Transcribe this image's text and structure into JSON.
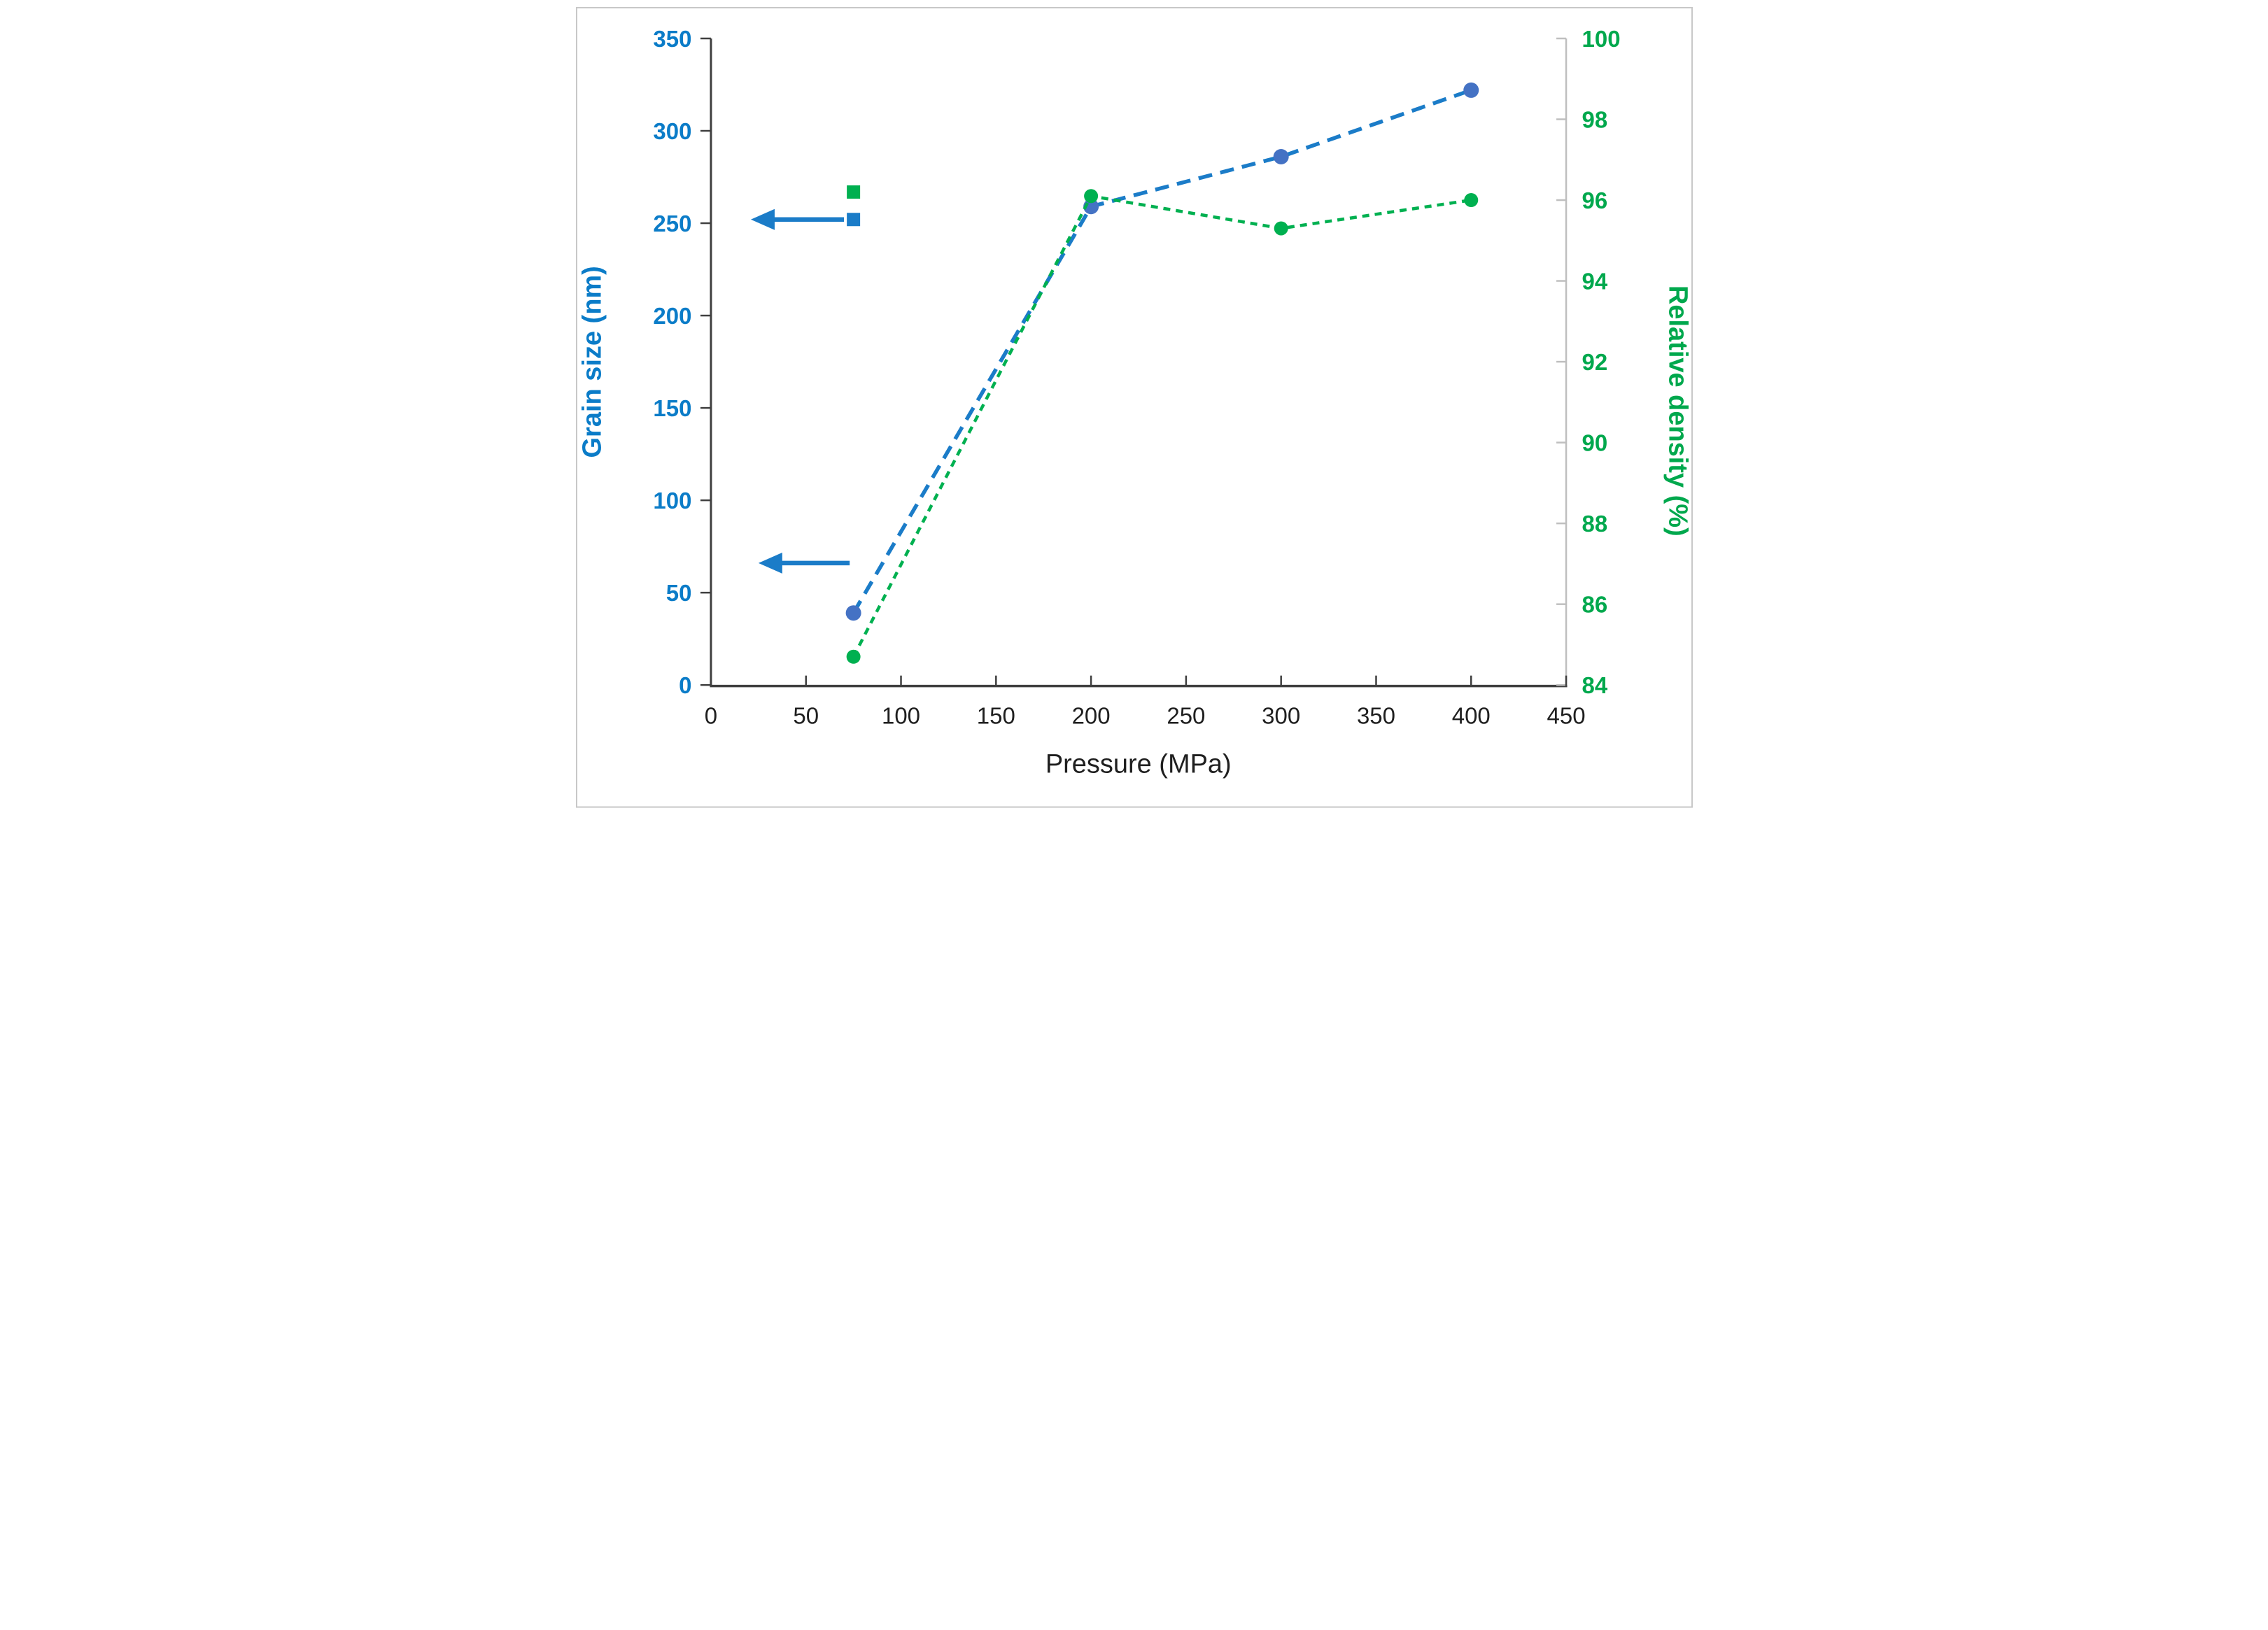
{
  "figure": {
    "background": "#ffffff",
    "border_color": "#c8c8c8",
    "axis_line_color": "#3f3f3f",
    "right_axis_line_color": "#bfbfbf",
    "x_label_color": "#1f1f1f"
  },
  "chart_data": {
    "type": "line",
    "title": "",
    "grid": false,
    "legend_position": "none",
    "x_axis": {
      "label": "Pressure (MPa)",
      "min": 0,
      "max": 450,
      "tick_step": 50,
      "ticks": [
        0,
        50,
        100,
        150,
        200,
        250,
        300,
        350,
        400,
        450
      ],
      "color": "#1f1f1f"
    },
    "left_axis": {
      "label": "Grain size (nm)",
      "min": 0,
      "max": 350,
      "tick_step": 50,
      "ticks": [
        0,
        50,
        100,
        150,
        200,
        250,
        300,
        350
      ],
      "color": "#0b7cc8"
    },
    "right_axis": {
      "label": "Relative density (%)",
      "min": 84,
      "max": 100,
      "tick_step": 2,
      "ticks": [
        84,
        86,
        88,
        90,
        92,
        94,
        96,
        98,
        100
      ],
      "color": "#00a84d"
    },
    "series": [
      {
        "name": "Grain size",
        "axis": "left",
        "marker": "circle",
        "marker_color": "#4472c4",
        "line_color": "#1b7cc8",
        "line_style": "dashed",
        "x": [
          75,
          200,
          300,
          400
        ],
        "y": [
          39,
          259,
          286,
          322
        ]
      },
      {
        "name": "Relative density",
        "axis": "right",
        "marker": "circle",
        "marker_color": "#00b050",
        "line_color": "#00b050",
        "line_style": "dotted",
        "x": [
          75,
          200,
          300,
          400
        ],
        "y": [
          84.7,
          96.1,
          95.3,
          96.0
        ]
      }
    ],
    "isolated_points": [
      {
        "axis": "right",
        "marker": "square",
        "color": "#00b050",
        "x": 75,
        "y": 96.2
      },
      {
        "axis": "left",
        "marker": "square",
        "color": "#1b7cc8",
        "x": 75,
        "y": 252
      }
    ],
    "annotations": {
      "arrows": [
        {
          "axis": "left",
          "y": 252,
          "x_from": 70,
          "x_to": 21,
          "color": "#1b7cc8"
        },
        {
          "axis": "left",
          "y": 66,
          "x_from": 73,
          "x_to": 25,
          "color": "#1b7cc8"
        }
      ]
    }
  }
}
